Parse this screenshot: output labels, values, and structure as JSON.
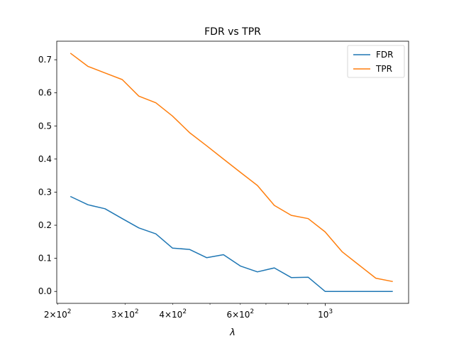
{
  "chart_data": {
    "type": "line",
    "title": "FDR vs TPR",
    "xlabel": "λ",
    "ylabel": "",
    "xscale": "log",
    "xlim": [
      199,
      1650
    ],
    "ylim": [
      -0.036,
      0.756
    ],
    "x": [
      216,
      240,
      266,
      295,
      326,
      361,
      399,
      442,
      490,
      542,
      600,
      665,
      736,
      815,
      902,
      999,
      1106,
      1224,
      1355,
      1500
    ],
    "series": [
      {
        "name": "FDR",
        "color": "#1f77b4",
        "values": [
          0.287,
          0.262,
          0.25,
          0.22,
          0.192,
          0.174,
          0.131,
          0.127,
          0.102,
          0.111,
          0.077,
          0.059,
          0.071,
          0.042,
          0.043,
          0.0,
          0.0,
          0.0,
          0.0,
          0.0
        ]
      },
      {
        "name": "TPR",
        "color": "#ff7f0e",
        "values": [
          0.72,
          0.68,
          0.66,
          0.64,
          0.59,
          0.57,
          0.53,
          0.48,
          0.44,
          0.4,
          0.36,
          0.32,
          0.26,
          0.23,
          0.22,
          0.18,
          0.12,
          0.08,
          0.04,
          0.03
        ]
      }
    ],
    "yticks": [
      0.0,
      0.1,
      0.2,
      0.3,
      0.4,
      0.5,
      0.6,
      0.7
    ],
    "ytick_labels": [
      "0.0",
      "0.1",
      "0.2",
      "0.3",
      "0.4",
      "0.5",
      "0.6",
      "0.7"
    ],
    "xticks_major": [
      1000
    ],
    "xticks_major_labels": [
      {
        "base": "10",
        "exp": "3"
      }
    ],
    "xticks_minor": [
      200,
      300,
      400,
      500,
      600,
      700,
      800,
      900
    ],
    "xticks_minor_labels": [
      {
        "value": 200,
        "coef": "2",
        "base": "10",
        "exp": "2"
      },
      {
        "value": 300,
        "coef": "3",
        "base": "10",
        "exp": "2"
      },
      {
        "value": 400,
        "coef": "4",
        "base": "10",
        "exp": "2"
      },
      {
        "value": 600,
        "coef": "6",
        "base": "10",
        "exp": "2"
      }
    ],
    "grid": false,
    "legend": "top-right"
  }
}
